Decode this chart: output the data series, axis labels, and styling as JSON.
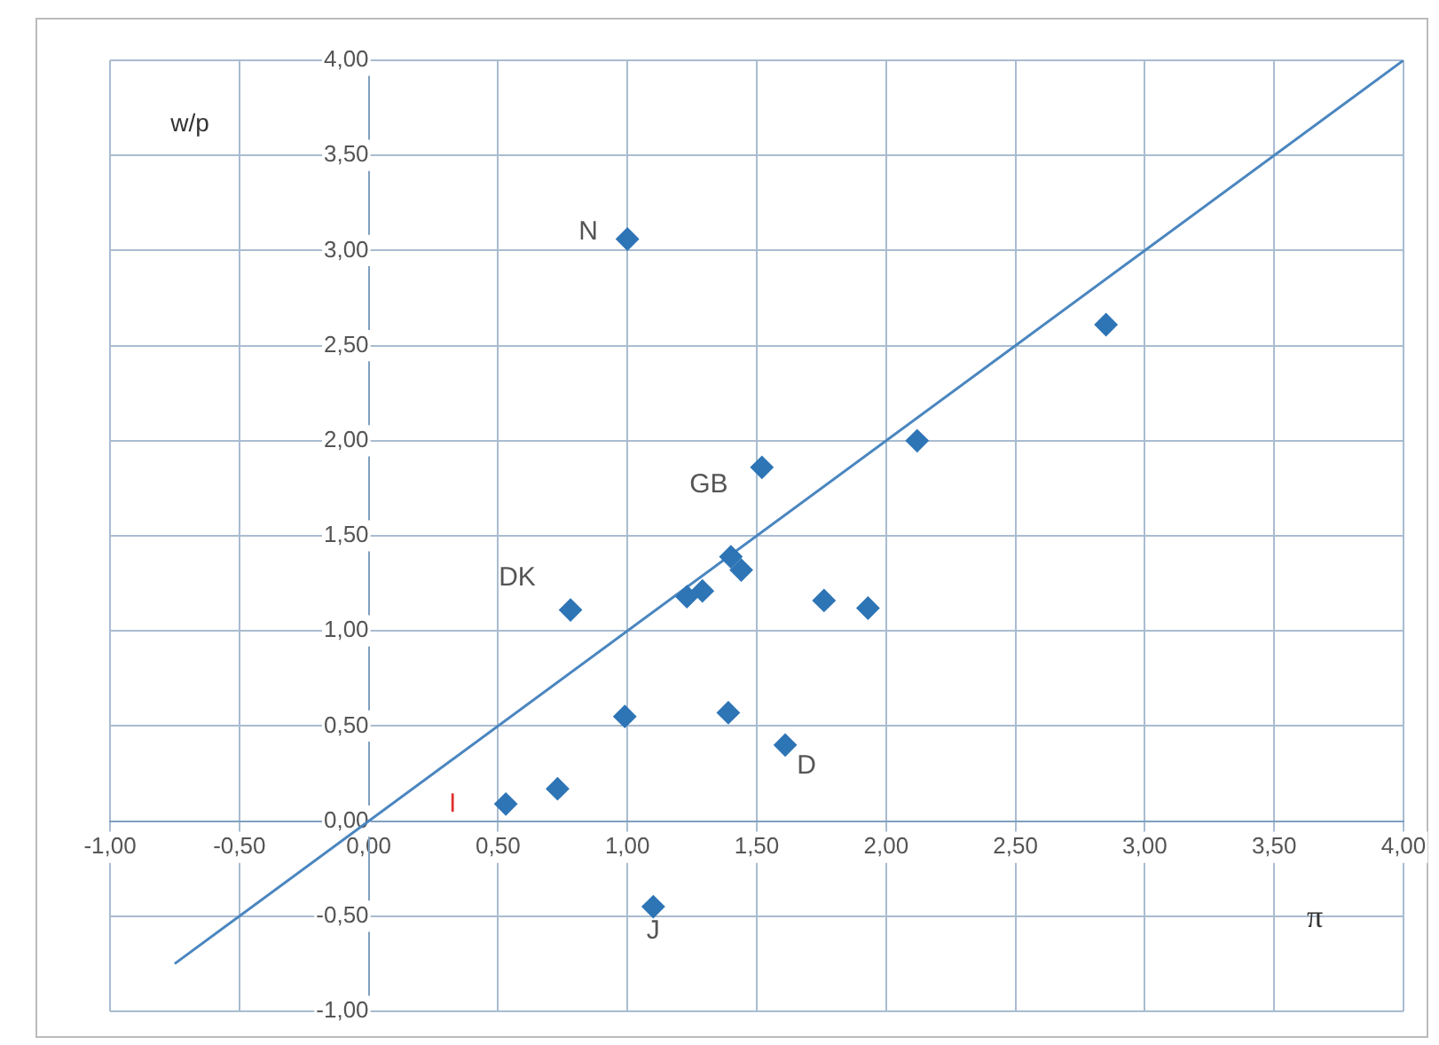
{
  "chart_data": {
    "type": "scatter",
    "xlabel": "π",
    "ylabel": "w/p",
    "series": [
      {
        "color": "#2e75b6",
        "marker": "diamond",
        "x": [
          1.0,
          2.85,
          2.12,
          1.52,
          0.78,
          1.23,
          1.29,
          1.4,
          1.44,
          1.76,
          1.93,
          0.99,
          1.39,
          1.61,
          0.73,
          0.53,
          1.1
        ],
        "values": [
          3.06,
          2.61,
          2.0,
          1.86,
          1.11,
          1.18,
          1.21,
          1.39,
          1.32,
          1.16,
          1.12,
          0.55,
          0.57,
          0.4,
          0.17,
          0.09,
          -0.45
        ]
      },
      {
        "type": "line",
        "color": "#4a86c0",
        "marker": "none",
        "x": [
          -0.75,
          4.0
        ],
        "values": [
          -0.75,
          4.0
        ]
      }
    ],
    "annotations": [
      {
        "text": "N",
        "x": 1.0,
        "y": 3.06
      },
      {
        "text": "GB",
        "x": 1.52,
        "y": 1.86
      },
      {
        "text": "DK",
        "x": 0.78,
        "y": 1.11
      },
      {
        "text": "D",
        "x": 1.61,
        "y": 0.4
      },
      {
        "text": "J",
        "x": 1.1,
        "y": -0.45
      },
      {
        "text": "I",
        "x": 0.53,
        "y": 0.09
      }
    ],
    "xlim": [
      -1,
      4
    ],
    "ylim": [
      -1,
      4
    ],
    "xticks": [
      {
        "value": -1,
        "label": "-1,00"
      },
      {
        "value": -0.5,
        "label": "-0,50"
      },
      {
        "value": 0,
        "label": "0,00"
      },
      {
        "value": 0.5,
        "label": "0,50"
      },
      {
        "value": 1,
        "label": "1,00"
      },
      {
        "value": 1.5,
        "label": "1,50"
      },
      {
        "value": 2,
        "label": "2,00"
      },
      {
        "value": 2.5,
        "label": "2,50"
      },
      {
        "value": 3,
        "label": "3,00"
      },
      {
        "value": 3.5,
        "label": "3,50"
      },
      {
        "value": 4,
        "label": "4,00"
      }
    ],
    "yticks": [
      {
        "value": -1,
        "label": "-1,00"
      },
      {
        "value": -0.5,
        "label": "-0,50"
      },
      {
        "value": 0,
        "label": "0,00"
      },
      {
        "value": 0.5,
        "label": "0,50"
      },
      {
        "value": 1,
        "label": "1,00"
      },
      {
        "value": 1.5,
        "label": "1,50"
      },
      {
        "value": 2,
        "label": "2,00"
      },
      {
        "value": 2.5,
        "label": "2,50"
      },
      {
        "value": 3,
        "label": "3,00"
      },
      {
        "value": 3.5,
        "label": "3,50"
      },
      {
        "value": 4,
        "label": "4,00"
      }
    ],
    "grid": true,
    "legend": false
  }
}
